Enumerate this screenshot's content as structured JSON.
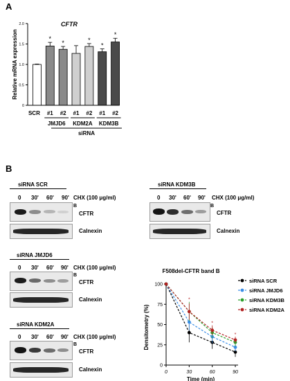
{
  "panel_a": {
    "letter": "A",
    "chart_data": {
      "type": "bar",
      "title": "CFTR",
      "ylabel": "Relative mRNA expression",
      "xlabel": "siRNA",
      "ylim": [
        0,
        2.0
      ],
      "y_ticks": [
        "0",
        "0.5",
        "1.0",
        "1.5",
        "2.0"
      ],
      "categories": [
        "SCR",
        "#1",
        "#2",
        "#1",
        "#2",
        "#1",
        "#2"
      ],
      "groups": [
        {
          "label": "JMJD6",
          "categories": [
            "#1",
            "#2"
          ]
        },
        {
          "label": "KDM2A",
          "categories": [
            "#1",
            "#2"
          ]
        },
        {
          "label": "KDM3B",
          "categories": [
            "#1",
            "#2"
          ]
        }
      ],
      "values": [
        1.0,
        1.45,
        1.37,
        1.27,
        1.44,
        1.31,
        1.55
      ],
      "errors": [
        0.01,
        0.09,
        0.07,
        0.19,
        0.07,
        0.07,
        0.09
      ],
      "significance": [
        "",
        "*",
        "*",
        "",
        "*",
        "*",
        "*"
      ],
      "colors": [
        "#ffffff",
        "#8a8a8a",
        "#8a8a8a",
        "#cfcfcf",
        "#cfcfcf",
        "#4a4a4a",
        "#4a4a4a"
      ]
    }
  },
  "panel_b": {
    "letter": "B",
    "timepoints": [
      "0",
      "30'",
      "60'",
      "90'"
    ],
    "chx_label": "CHX (100 μg/ml)",
    "band_label": "B",
    "cftr_label": "CFTR",
    "loading_label": "Calnexin",
    "blots": [
      {
        "title": "siRNA SCR",
        "cftr_intensity": [
          1.0,
          0.4,
          0.28,
          0.12
        ]
      },
      {
        "title": "siRNA KDM3B",
        "cftr_intensity": [
          1.0,
          0.75,
          0.5,
          0.3
        ]
      },
      {
        "title": "siRNA JMJD6",
        "cftr_intensity": [
          1.0,
          0.55,
          0.4,
          0.35
        ]
      },
      {
        "title": "siRNA KDM2A",
        "cftr_intensity": [
          1.0,
          0.7,
          0.45,
          0.3
        ]
      }
    ],
    "chart_data": {
      "type": "line",
      "title": "F508del-CFTR band B",
      "xlabel": "Time (min)",
      "ylabel": "Densitometry (%)",
      "x": [
        0,
        30,
        60,
        90
      ],
      "xlim": [
        0,
        90
      ],
      "ylim": [
        0,
        100
      ],
      "x_ticks": [
        "0",
        "30",
        "60",
        "90"
      ],
      "y_ticks": [
        "0",
        "25",
        "50",
        "75",
        "100"
      ],
      "legend_position": "top-right",
      "series": [
        {
          "name": "siRNA SCR",
          "values": [
            100,
            40,
            28,
            16
          ],
          "errors": [
            0,
            12,
            8,
            6
          ],
          "color": "#000000"
        },
        {
          "name": "siRNA JMJD6",
          "values": [
            100,
            53,
            35,
            22
          ],
          "errors": [
            0,
            10,
            8,
            5
          ],
          "color": "#3a8ee6"
        },
        {
          "name": "siRNA KDM3B",
          "values": [
            100,
            66,
            40,
            28
          ],
          "errors": [
            0,
            12,
            7,
            5
          ],
          "color": "#2ca02c"
        },
        {
          "name": "siRNA KDM2A",
          "values": [
            100,
            66,
            43,
            31
          ],
          "errors": [
            0,
            10,
            6,
            4
          ],
          "color": "#b22222"
        }
      ],
      "star_marks": [
        "",
        "*",
        "*",
        "*"
      ]
    }
  }
}
